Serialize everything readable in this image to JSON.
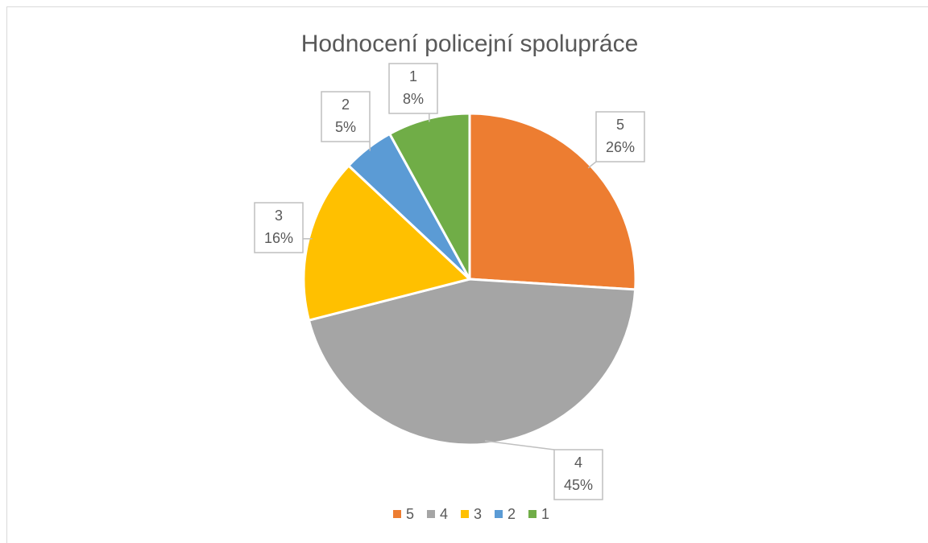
{
  "chart_data": {
    "type": "pie",
    "title": "Hodnocení policejní spolupráce",
    "categories": [
      "5",
      "4",
      "3",
      "2",
      "1"
    ],
    "values": [
      26,
      45,
      16,
      5,
      8
    ],
    "value_labels": [
      "26%",
      "45%",
      "16%",
      "5%",
      "8%"
    ],
    "colors": [
      "#ED7D31",
      "#A5A5A5",
      "#FFC000",
      "#5B9BD5",
      "#70AD47"
    ],
    "legend": "bottom"
  }
}
